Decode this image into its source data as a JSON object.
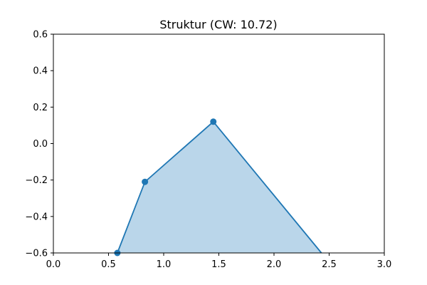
{
  "chart_data": {
    "type": "area",
    "title": "Struktur (CW: 10.72)",
    "xlabel": "",
    "ylabel": "",
    "xlim": [
      0.0,
      3.0
    ],
    "ylim": [
      -0.6,
      0.6
    ],
    "grid": false,
    "xticks": [
      "0.0",
      "0.5",
      "1.0",
      "1.5",
      "2.0",
      "2.5",
      "3.0"
    ],
    "yticks": [
      "−0.6",
      "−0.4",
      "−0.2",
      "0.0",
      "0.2",
      "0.4",
      "0.6"
    ],
    "series": [
      {
        "x": [
          0.58,
          0.83,
          1.45,
          2.43
        ],
        "y": [
          -0.6,
          -0.21,
          0.12,
          -0.6
        ],
        "markers": [
          true,
          true,
          true,
          false
        ]
      }
    ],
    "colors": {
      "line": "#1f77b4",
      "fill": "#bad6ea"
    }
  }
}
